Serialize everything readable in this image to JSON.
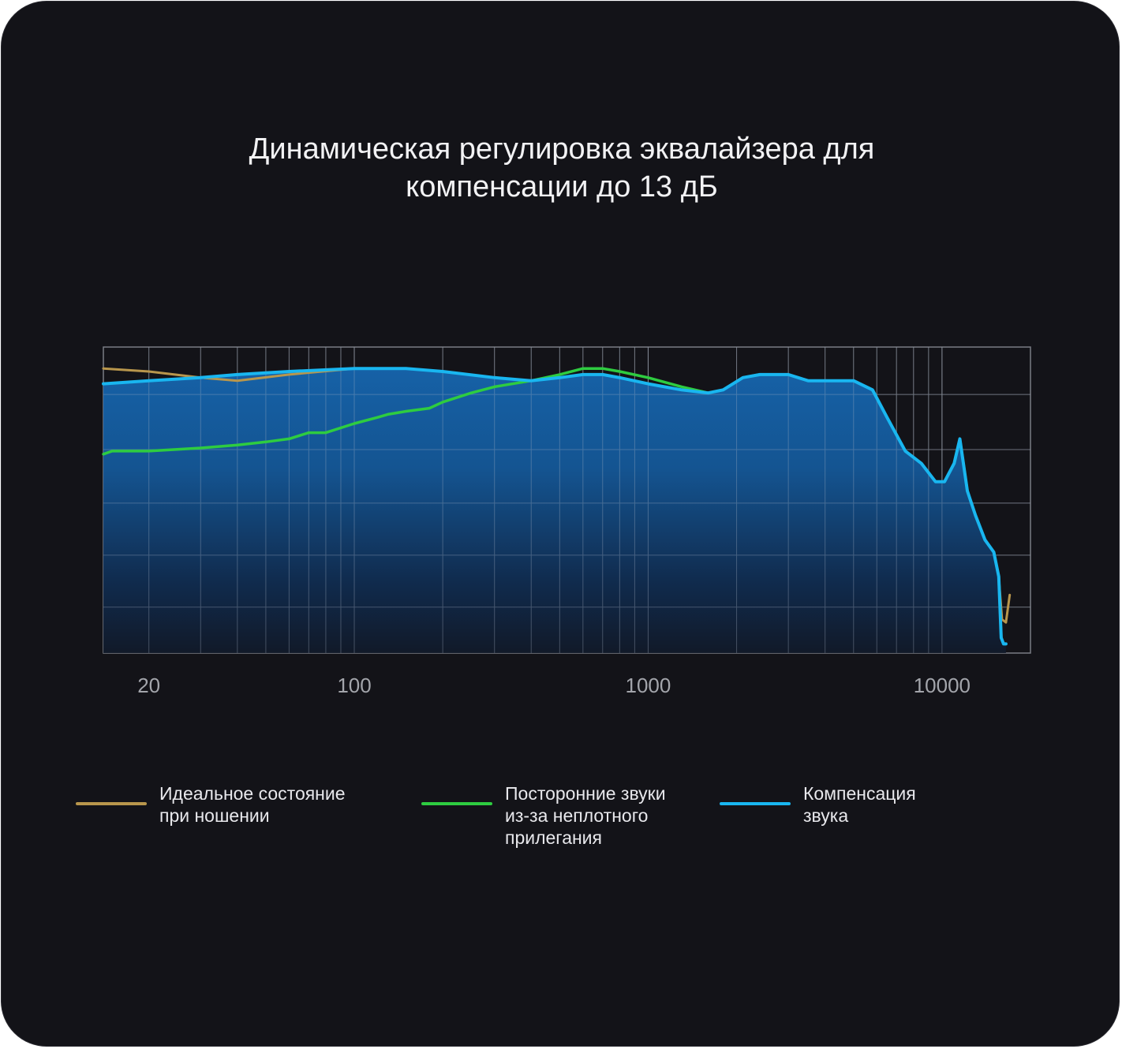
{
  "title": {
    "line1": "Динамическая регулировка эквалайзера для",
    "line2": "компенсации до 13 дБ"
  },
  "legend": [
    {
      "lines": [
        "Идеальное состояние",
        "при ношении"
      ],
      "color": "#b8964c"
    },
    {
      "lines": [
        "Посторонние звуки",
        "из-за неплотного",
        "прилегания"
      ],
      "color": "#2ecc40"
    },
    {
      "lines": [
        "Компенсация",
        "звука"
      ],
      "color": "#19b6f0"
    }
  ],
  "chart_data": {
    "type": "line",
    "title": "Динамическая регулировка эквалайзера для компенсации до 13 дБ",
    "xlabel": "",
    "ylabel": "",
    "x_scale": "log",
    "xlim": [
      14,
      20000
    ],
    "ylim": [
      0,
      1
    ],
    "x_tick_labels": [
      "20",
      "100",
      "1000",
      "10000"
    ],
    "x_tick_values": [
      20,
      100,
      1000,
      10000
    ],
    "grid": true,
    "legend_position": "bottom",
    "series": [
      {
        "name": "Идеальное состояние при ношении",
        "color": "#b8964c",
        "x": [
          14,
          20,
          30,
          40,
          60,
          100,
          150,
          200,
          300,
          400,
          500,
          600,
          700,
          800,
          1000,
          1300,
          1600,
          1800,
          2100,
          2400,
          2700,
          3000,
          3500,
          4000,
          5000,
          5800,
          6500,
          7500,
          8500,
          9500,
          10200,
          11000,
          11500,
          12200,
          13000,
          14000,
          15000,
          15600,
          16000,
          16500,
          17000
        ],
        "y": [
          0.93,
          0.92,
          0.9,
          0.89,
          0.91,
          0.93,
          0.93,
          0.92,
          0.9,
          0.89,
          0.9,
          0.91,
          0.91,
          0.9,
          0.88,
          0.86,
          0.85,
          0.86,
          0.9,
          0.91,
          0.91,
          0.91,
          0.89,
          0.89,
          0.89,
          0.86,
          0.77,
          0.66,
          0.62,
          0.56,
          0.56,
          0.62,
          0.7,
          0.53,
          0.45,
          0.37,
          0.33,
          0.25,
          0.11,
          0.1,
          0.19
        ]
      },
      {
        "name": "Посторонние звуки из-за неплотного прилегания",
        "color": "#2ecc40",
        "x": [
          14,
          15,
          20,
          30,
          40,
          50,
          60,
          70,
          80,
          100,
          120,
          130,
          150,
          180,
          200,
          250,
          300,
          400,
          500,
          600,
          650,
          700,
          800,
          1000,
          1300,
          1600,
          1800,
          2100,
          2400,
          2700,
          3000,
          3500,
          4000,
          5000,
          5800,
          6500,
          7500,
          8500,
          9500,
          10200,
          11000,
          11500,
          12200,
          13000,
          14000,
          15000,
          15600,
          15900,
          16200,
          16500
        ],
        "y": [
          0.65,
          0.66,
          0.66,
          0.67,
          0.68,
          0.69,
          0.7,
          0.72,
          0.72,
          0.75,
          0.77,
          0.78,
          0.79,
          0.8,
          0.82,
          0.85,
          0.87,
          0.89,
          0.91,
          0.93,
          0.93,
          0.93,
          0.92,
          0.9,
          0.87,
          0.85,
          0.86,
          0.9,
          0.91,
          0.91,
          0.91,
          0.89,
          0.89,
          0.89,
          0.86,
          0.77,
          0.66,
          0.62,
          0.56,
          0.56,
          0.62,
          0.7,
          0.53,
          0.45,
          0.37,
          0.33,
          0.25,
          0.05,
          0.03,
          0.03
        ]
      },
      {
        "name": "Компенсация звука",
        "color": "#19b6f0",
        "x": [
          14,
          20,
          30,
          40,
          60,
          100,
          150,
          200,
          300,
          400,
          500,
          600,
          650,
          700,
          800,
          1000,
          1300,
          1600,
          1800,
          2100,
          2400,
          2700,
          3000,
          3500,
          4000,
          5000,
          5800,
          6500,
          7500,
          8500,
          9500,
          10200,
          11000,
          11500,
          12200,
          13000,
          14000,
          15000,
          15600,
          15900,
          16200,
          16500
        ],
        "y": [
          0.88,
          0.89,
          0.9,
          0.91,
          0.92,
          0.93,
          0.93,
          0.92,
          0.9,
          0.89,
          0.9,
          0.91,
          0.91,
          0.91,
          0.9,
          0.88,
          0.86,
          0.85,
          0.86,
          0.9,
          0.91,
          0.91,
          0.91,
          0.89,
          0.89,
          0.89,
          0.86,
          0.77,
          0.66,
          0.62,
          0.56,
          0.56,
          0.62,
          0.7,
          0.53,
          0.45,
          0.37,
          0.33,
          0.25,
          0.05,
          0.03,
          0.03
        ]
      }
    ]
  }
}
